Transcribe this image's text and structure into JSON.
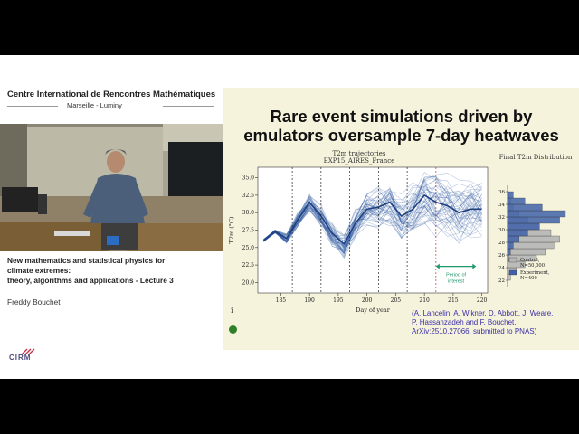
{
  "header": {
    "organization": "Centre International de Rencontres Mathématiques",
    "location": "Marseille - Luminy"
  },
  "talk": {
    "title_line1": "New mathematics and statistical physics for",
    "title_line2": "climate extremes:",
    "title_line3": "theory, algorithms and applications - Lecture 3",
    "speaker": "Freddy Bouchet"
  },
  "logo": {
    "text": "CIRM"
  },
  "slide": {
    "title_line1": "Rare event simulations driven by",
    "title_line2": "emulators oversample 7-day heatwaves",
    "citation_line1": "(A. Lancelin, A. Wikner, D. Abbott, J. Weare,",
    "citation_line2": "P. Hassanzadeh and F. Bouchet,,",
    "citation_line3": "ArXiv:2510.27066, submitted to PNAS)",
    "info_marker": "i"
  },
  "chart_data": [
    {
      "type": "line",
      "title_line1": "T2m trajectories",
      "title_line2": "EXP15_AIRES_France",
      "xlabel": "Day of year",
      "ylabel": "T2m (°C)",
      "xlim": [
        181,
        221
      ],
      "ylim": [
        18.5,
        36.5
      ],
      "x_ticks": [
        "185",
        "190",
        "195",
        "200",
        "205",
        "210",
        "215",
        "220"
      ],
      "y_ticks": [
        "20.0",
        "22.5",
        "25.0",
        "27.5",
        "30.0",
        "32.5",
        "35.0"
      ],
      "vertical_lines": [
        {
          "x": 187,
          "style": "dotted"
        },
        {
          "x": 192,
          "style": "dotted"
        },
        {
          "x": 197,
          "style": "dotted"
        },
        {
          "x": 202,
          "style": "dotted"
        },
        {
          "x": 207,
          "style": "dotted"
        },
        {
          "x": 212,
          "style": "dotted",
          "color": "#c03030"
        }
      ],
      "annotation": {
        "text_line1": "Period of",
        "text_line2": "interest",
        "from": 212,
        "to": 219
      },
      "mean_series": {
        "x": [
          182,
          184,
          186,
          188,
          190,
          192,
          194,
          196,
          198,
          200,
          202,
          204,
          206,
          208,
          210,
          212,
          214,
          216,
          218,
          220
        ],
        "values": [
          26.0,
          27.3,
          26.3,
          29.0,
          31.5,
          29.5,
          27.0,
          25.5,
          28.5,
          30.5,
          30.8,
          31.5,
          29.5,
          30.5,
          32.5,
          31.5,
          31.0,
          30.0,
          30.5,
          30.5
        ]
      },
      "series_color": "#2f5aa0"
    },
    {
      "type": "bar",
      "title_line1": "Final T2m Distribution",
      "y_ticks": [
        "22",
        "24",
        "26",
        "28",
        "30",
        "32",
        "34",
        "36"
      ],
      "ylim": [
        21,
        37
      ],
      "bins": [
        22,
        23,
        24,
        25,
        26,
        27,
        28,
        29,
        30,
        31,
        32,
        33,
        34,
        35
      ],
      "series": [
        {
          "name": "Control, N=50,000",
          "color": "#b5b5b5",
          "values": [
            0.05,
            0.15,
            0.3,
            0.5,
            0.65,
            0.8,
            0.9,
            0.75,
            0.55,
            0.35,
            0.2,
            0.1,
            0.05,
            0.02
          ]
        },
        {
          "name": "Experiment, N=400",
          "color": "#3f62a8",
          "values": [
            0.0,
            0.0,
            0.0,
            0.02,
            0.05,
            0.1,
            0.2,
            0.35,
            0.55,
            0.9,
            1.0,
            0.6,
            0.3,
            0.1
          ]
        }
      ],
      "legend_placement": "bottom"
    }
  ]
}
